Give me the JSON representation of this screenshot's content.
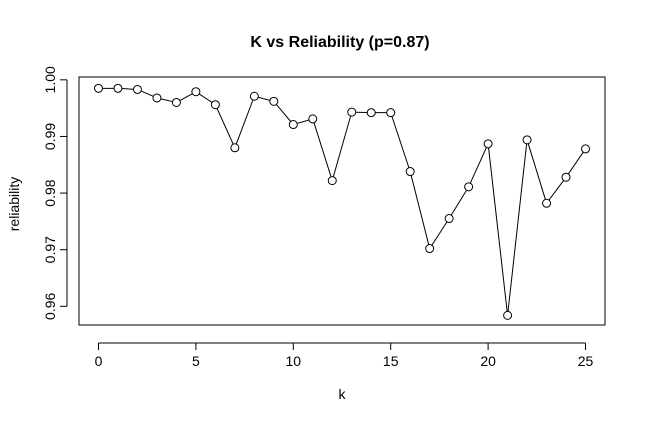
{
  "chart_data": {
    "type": "line",
    "title": "K vs Reliability (p=0.87)",
    "xlabel": "k",
    "ylabel": "reliability",
    "xlim": [
      -1,
      26
    ],
    "ylim": [
      0.9567,
      1.0005
    ],
    "x_ticks": [
      0,
      5,
      10,
      15,
      20,
      25
    ],
    "y_ticks": [
      0.96,
      0.97,
      0.98,
      0.99,
      1.0
    ],
    "y_tick_labels": [
      "0.96",
      "0.97",
      "0.98",
      "0.99",
      "1.00"
    ],
    "grid": false,
    "markers": "open-circle",
    "x": [
      0,
      1,
      2,
      3,
      4,
      5,
      6,
      7,
      8,
      9,
      10,
      11,
      12,
      13,
      14,
      15,
      16,
      17,
      18,
      19,
      20,
      21,
      22,
      23,
      24,
      25
    ],
    "values": [
      0.9985,
      0.9985,
      0.9983,
      0.9968,
      0.996,
      0.9979,
      0.9956,
      0.988,
      0.9971,
      0.9962,
      0.9921,
      0.9931,
      0.9822,
      0.9943,
      0.9942,
      0.9942,
      0.9838,
      0.9702,
      0.9755,
      0.9811,
      0.9887,
      0.9584,
      0.9894,
      0.9782,
      0.9828,
      0.9878
    ]
  }
}
